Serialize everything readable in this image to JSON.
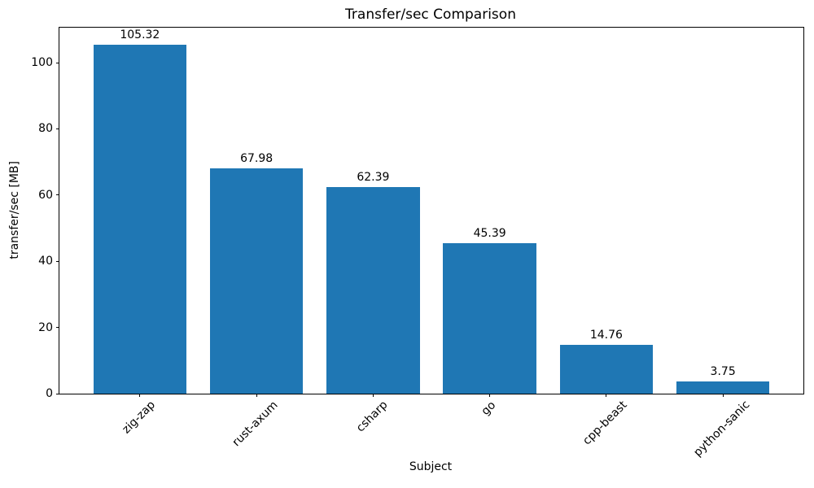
{
  "chart_data": {
    "type": "bar",
    "title": "Transfer/sec Comparison",
    "xlabel": "Subject",
    "ylabel": "transfer/sec [MB]",
    "categories": [
      "zig-zap",
      "rust-axum",
      "csharp",
      "go",
      "cpp-beast",
      "python-sanic"
    ],
    "values": [
      105.32,
      67.98,
      62.39,
      45.39,
      14.76,
      3.75
    ],
    "value_labels": [
      "105.32",
      "67.98",
      "62.39",
      "45.39",
      "14.76",
      "3.75"
    ],
    "yticks": [
      0,
      20,
      40,
      60,
      80,
      100
    ],
    "ylim": [
      0,
      110.59
    ],
    "bar_color": "#1f77b4",
    "grid": false,
    "legend_position": "none",
    "x_tick_label_rotation_deg": 45
  }
}
